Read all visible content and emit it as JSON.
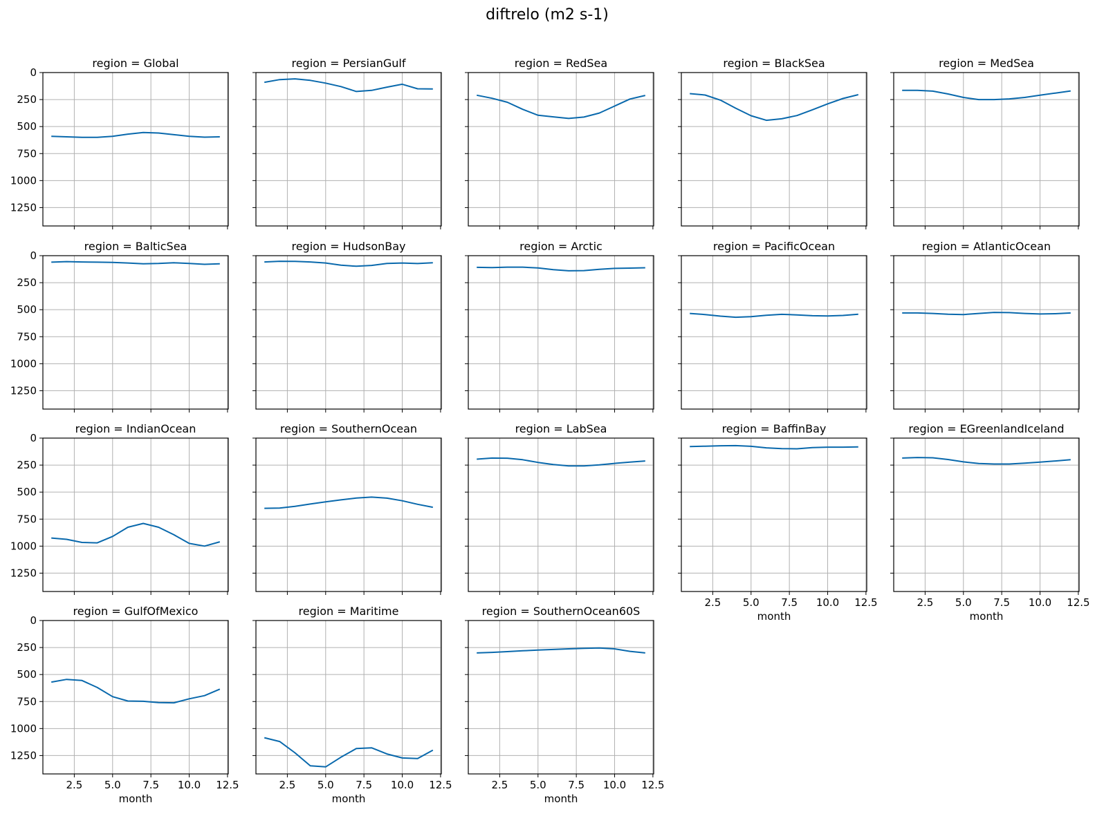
{
  "chart_data": {
    "type": "line",
    "title": "diftrelo (m2 s-1)",
    "xlabel": "month",
    "xlim": [
      0.45,
      12.55
    ],
    "ylim": [
      1420,
      0
    ],
    "y_inverted": true,
    "grid": true,
    "x": [
      1,
      2,
      3,
      4,
      5,
      6,
      7,
      8,
      9,
      10,
      11,
      12
    ],
    "xticks": [
      2.5,
      5.0,
      7.5,
      10.0,
      12.5
    ],
    "xtick_labels": [
      "2.5",
      "5.0",
      "7.5",
      "10.0",
      "12.5"
    ],
    "yticks": [
      0,
      250,
      500,
      750,
      1000,
      1250
    ],
    "ytick_labels": [
      "0",
      "250",
      "500",
      "750",
      "1000",
      "1250"
    ],
    "line_color": "#0868ac",
    "panels": [
      {
        "title": "region = Global",
        "values": [
          590,
          595,
          600,
          600,
          590,
          570,
          555,
          560,
          575,
          590,
          598,
          595
        ]
      },
      {
        "title": "region = PersianGulf",
        "values": [
          90,
          65,
          58,
          72,
          98,
          130,
          175,
          165,
          135,
          108,
          150,
          152
        ]
      },
      {
        "title": "region = RedSea",
        "values": [
          210,
          238,
          275,
          340,
          395,
          410,
          425,
          412,
          375,
          310,
          245,
          212
        ]
      },
      {
        "title": "region = BlackSea",
        "values": [
          195,
          208,
          255,
          330,
          400,
          442,
          428,
          398,
          345,
          290,
          240,
          205
        ]
      },
      {
        "title": "region = MedSea",
        "values": [
          165,
          165,
          172,
          198,
          230,
          250,
          250,
          244,
          230,
          210,
          190,
          170
        ]
      },
      {
        "title": "region = BalticSea",
        "values": [
          60,
          55,
          58,
          60,
          62,
          68,
          75,
          72,
          66,
          72,
          80,
          75
        ]
      },
      {
        "title": "region = HudsonBay",
        "values": [
          58,
          52,
          53,
          58,
          68,
          88,
          98,
          90,
          72,
          68,
          73,
          66
        ]
      },
      {
        "title": "region = Arctic",
        "values": [
          108,
          110,
          106,
          106,
          114,
          130,
          140,
          138,
          126,
          118,
          115,
          112
        ]
      },
      {
        "title": "region = PacificOcean",
        "values": [
          535,
          545,
          560,
          570,
          565,
          552,
          543,
          548,
          556,
          558,
          553,
          542
        ]
      },
      {
        "title": "region = AtlanticOcean",
        "values": [
          530,
          530,
          535,
          542,
          545,
          535,
          525,
          527,
          535,
          540,
          537,
          530
        ]
      },
      {
        "title": "region = IndianOcean",
        "values": [
          925,
          937,
          966,
          970,
          910,
          825,
          790,
          825,
          895,
          975,
          1000,
          960
        ]
      },
      {
        "title": "region = SouthernOcean",
        "values": [
          650,
          648,
          632,
          610,
          590,
          572,
          555,
          546,
          556,
          580,
          613,
          640
        ]
      },
      {
        "title": "region = LabSea",
        "values": [
          195,
          185,
          186,
          200,
          225,
          245,
          257,
          258,
          248,
          234,
          222,
          212
        ]
      },
      {
        "title": "region = BaffinBay",
        "values": [
          78,
          75,
          71,
          70,
          76,
          90,
          98,
          99,
          88,
          84,
          84,
          82
        ]
      },
      {
        "title": "region = EGreenlandIceland",
        "values": [
          185,
          180,
          182,
          198,
          220,
          235,
          240,
          240,
          232,
          222,
          212,
          200
        ]
      },
      {
        "title": "region = GulfOfMexico",
        "values": [
          570,
          545,
          555,
          620,
          705,
          745,
          748,
          760,
          762,
          725,
          695,
          635
        ]
      },
      {
        "title": "region = Maritime",
        "values": [
          1085,
          1120,
          1225,
          1345,
          1355,
          1265,
          1185,
          1178,
          1235,
          1272,
          1278,
          1200
        ]
      },
      {
        "title": "region = SouthernOcean60S",
        "values": [
          300,
          295,
          288,
          280,
          274,
          268,
          262,
          258,
          254,
          262,
          285,
          300
        ]
      }
    ]
  }
}
